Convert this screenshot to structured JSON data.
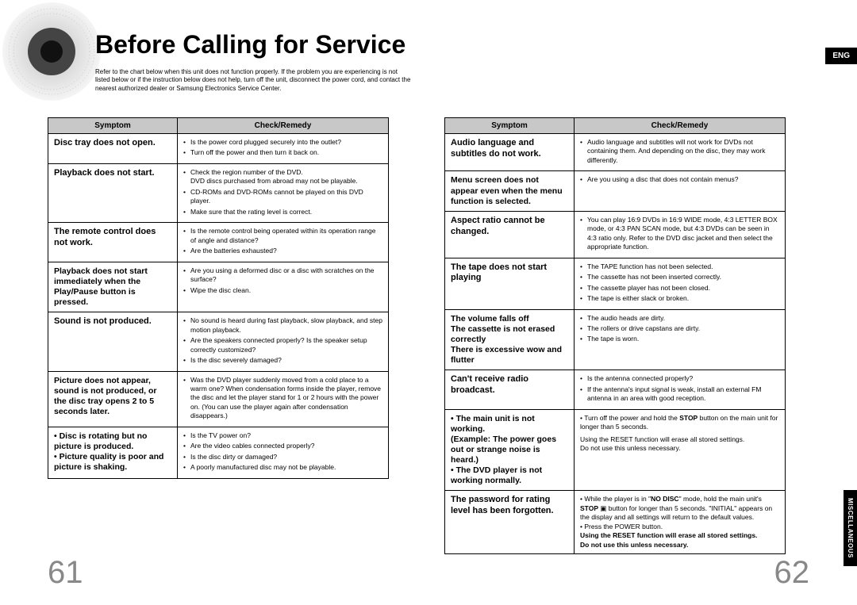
{
  "title": "Before Calling for Service",
  "intro": "Refer to the chart below when this unit does not function properly. If the problem you are experiencing is not listed below or if the instruction below does not help, turn off the unit, disconnect the power cord, and contact the nearest authorized dealer or Samsung Electronics Service Center.",
  "lang": "ENG",
  "side_tab": "MISCELLANEOUS",
  "headers": {
    "symptom": "Symptom",
    "remedy": "Check/Remedy"
  },
  "page_left": "61",
  "page_right": "62",
  "left": [
    {
      "sym": "Disc tray does not open.",
      "rem": [
        "Is the power cord plugged securely into the outlet?",
        "Turn off the power and then turn it back on."
      ]
    },
    {
      "sym": "Playback does not start.",
      "rem": [
        "Check the region number of the DVD.\nDVD discs purchased from abroad may not be playable.",
        "CD-ROMs and DVD-ROMs cannot be played on this DVD player.",
        "Make sure that the rating level is correct."
      ]
    },
    {
      "sym": "The remote control does not work.",
      "rem": [
        "Is the remote control being operated within its operation range of angle and distance?",
        "Are the batteries exhausted?"
      ]
    },
    {
      "sym": "Playback does not start immediately when the Play/Pause button is pressed.",
      "rem": [
        "Are you using a deformed disc or a disc with scratches on the surface?",
        "Wipe the disc clean."
      ]
    },
    {
      "sym": "Sound is not produced.",
      "rem": [
        "No sound is heard during fast playback, slow playback, and step motion playback.",
        "Are the speakers connected properly? Is the speaker setup correctly customized?",
        "Is the disc severely damaged?"
      ]
    },
    {
      "sym": "Picture does not appear, sound is not produced, or the disc tray opens 2 to 5 seconds later.",
      "rem": [
        "Was the DVD player suddenly moved from a cold place to a warm one? When condensation forms inside the player, remove the disc and let the player stand for 1 or 2 hours with the power on. (You can use the player again after condensation disappears.)"
      ]
    },
    {
      "sym": "• Disc is rotating but no picture is produced.\n• Picture quality is poor and picture is shaking.",
      "rem": [
        "Is the TV power on?",
        "Are the video cables connected properly?",
        "Is the disc dirty or damaged?",
        "A poorly manufactured disc may not be playable."
      ]
    }
  ],
  "right": [
    {
      "sym": "Audio language and subtitles do not work.",
      "rem": [
        "Audio language and subtitles will not work for DVDs not containing them. And depending on the disc, they may work differently."
      ]
    },
    {
      "sym": "Menu screen does not appear even when the menu function is selected.",
      "rem": [
        "Are you using a disc that does not contain menus?"
      ]
    },
    {
      "sym": "Aspect ratio cannot be changed.",
      "rem": [
        "You can play 16:9 DVDs in 16:9 WIDE mode, 4:3 LETTER BOX mode, or 4:3 PAN SCAN mode, but 4:3 DVDs can be seen in 4:3 ratio only. Refer to the DVD disc jacket and then select the appropriate function."
      ]
    },
    {
      "sym": "The tape does not start playing",
      "rem": [
        "The TAPE function has not been selected.",
        "The cassette has not been inserted correctly.",
        "The cassette player has not been closed.",
        "The tape is either slack or broken."
      ]
    },
    {
      "sym": "The volume falls off\nThe cassette is not erased correctly\nThere is excessive wow and flutter",
      "rem": [
        "The audio heads are dirty.",
        "The rollers or drive capstans are dirty.",
        "The tape is worn."
      ]
    },
    {
      "sym": "Can't receive radio broadcast.",
      "rem": [
        "Is the antenna connected properly?",
        "If the antenna's input signal is weak, install an external FM antenna in an area with good reception."
      ]
    },
    {
      "sym": "• The main unit is not working.\n  (Example: The power goes out or strange noise is heard.)\n• The DVD player is not working normally.",
      "rem_html": "• Turn off the power and hold the <b>STOP</b> button on the main unit for longer than 5 seconds.<br><span style='display:block;margin-top:4px'>Using the RESET function will erase all stored settings.<br>Do not use this unless necessary.</span>"
    },
    {
      "sym": "The password for rating level has been forgotten.",
      "rem_html": "• While the player is in \"<b>NO DISC</b>\" mode, hold the main unit's <b>STOP</b> ▣ button for longer than 5 seconds. \"INITIAL\" appears on the display and all settings will return to the default values.<br>• Press the POWER button.<br><b>Using the RESET function will erase all stored settings.<br>Do not use this unless necessary.</b>"
    }
  ]
}
